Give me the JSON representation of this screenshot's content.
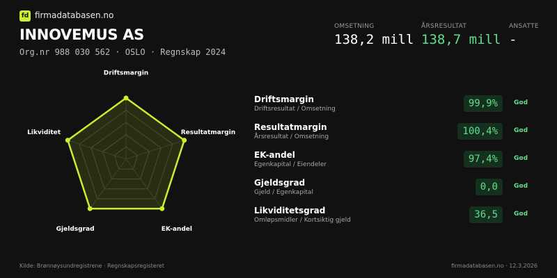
{
  "header": {
    "brand": "firmadatabasen.no",
    "company": "INNOVEMUS AS",
    "subtitle": "Org.nr 988 030 562 · OSLO · Regnskap 2024"
  },
  "kpis": [
    {
      "label": "OMSETNING",
      "value": "138,2 mill"
    },
    {
      "label": "ÅRSRESULTAT",
      "value": "138,7 mill"
    },
    {
      "label": "ANSATTE",
      "value": "-"
    }
  ],
  "chart_data": {
    "type": "radar",
    "categories": [
      "Driftsmargin",
      "Resultatmargin",
      "EK-andel",
      "Gjeldsgrad",
      "Likviditet"
    ],
    "values": [
      100,
      100,
      100,
      100,
      100
    ],
    "color": "#c8f031",
    "ylim": [
      0,
      100
    ],
    "yticks": [
      20,
      40,
      60,
      80,
      100
    ],
    "grid": true
  },
  "metrics": [
    {
      "name": "Driftsmargin",
      "desc": "Driftsresultat / Omsetning",
      "value": "99,9%",
      "status": "God"
    },
    {
      "name": "Resultatmargin",
      "desc": "Årsresultat / Omsetning",
      "value": "100,4%",
      "status": "God"
    },
    {
      "name": "EK-andel",
      "desc": "Egenkapital / Eiendeler",
      "value": "97,4%",
      "status": "God"
    },
    {
      "name": "Gjeldsgrad",
      "desc": "Gjeld / Egenkapital",
      "value": "0,0",
      "status": "God"
    },
    {
      "name": "Likviditetsgrad",
      "desc": "Omløpsmidler / Kortsiktig gjeld",
      "value": "36,5",
      "status": "God"
    }
  ],
  "footer": {
    "source": "Kilde: Brønnøysundregistrene · Regnskapsregisteret",
    "site": "firmadatabasen.no · 12.3.2026"
  }
}
